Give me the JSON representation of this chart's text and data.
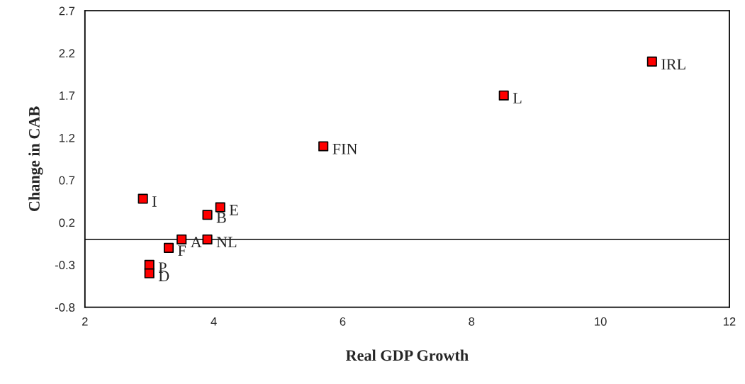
{
  "chart_data": {
    "type": "scatter",
    "xlabel": "Real GDP Growth",
    "ylabel": "Change in CAB",
    "x": [
      10.8,
      8.5,
      5.7,
      2.9,
      4.1,
      3.9,
      3.5,
      3.9,
      3.3,
      3.0,
      3.0
    ],
    "values": [
      2.1,
      1.7,
      1.1,
      0.48,
      0.38,
      0.29,
      0.0,
      0.0,
      -0.1,
      -0.3,
      -0.4
    ],
    "color": "#ff0000",
    "marker": "square",
    "xlim": [
      2,
      12
    ],
    "xticks": [
      2,
      4,
      6,
      8,
      10,
      12
    ],
    "ylim": [
      -0.8,
      2.7
    ],
    "yticks": [
      -0.8,
      -0.3,
      0.2,
      0.7,
      1.2,
      1.7,
      2.2,
      2.7
    ],
    "ref_lines": [
      {
        "axis": "y",
        "value": 0,
        "color": "#000000"
      }
    ],
    "grid": false,
    "legend": false,
    "annotations": [
      {
        "text": "IRL",
        "x": 10.8,
        "y": 2.1
      },
      {
        "text": "L",
        "x": 8.5,
        "y": 1.7
      },
      {
        "text": "FIN",
        "x": 5.7,
        "y": 1.1
      },
      {
        "text": "I",
        "x": 2.9,
        "y": 0.48
      },
      {
        "text": "E",
        "x": 4.1,
        "y": 0.38
      },
      {
        "text": "B",
        "x": 3.9,
        "y": 0.29
      },
      {
        "text": "A",
        "x": 3.5,
        "y": 0.0
      },
      {
        "text": "NL",
        "x": 3.9,
        "y": 0.0
      },
      {
        "text": "F",
        "x": 3.3,
        "y": -0.1
      },
      {
        "text": "P",
        "x": 3.0,
        "y": -0.3
      },
      {
        "text": "D",
        "x": 3.0,
        "y": -0.4
      }
    ]
  }
}
